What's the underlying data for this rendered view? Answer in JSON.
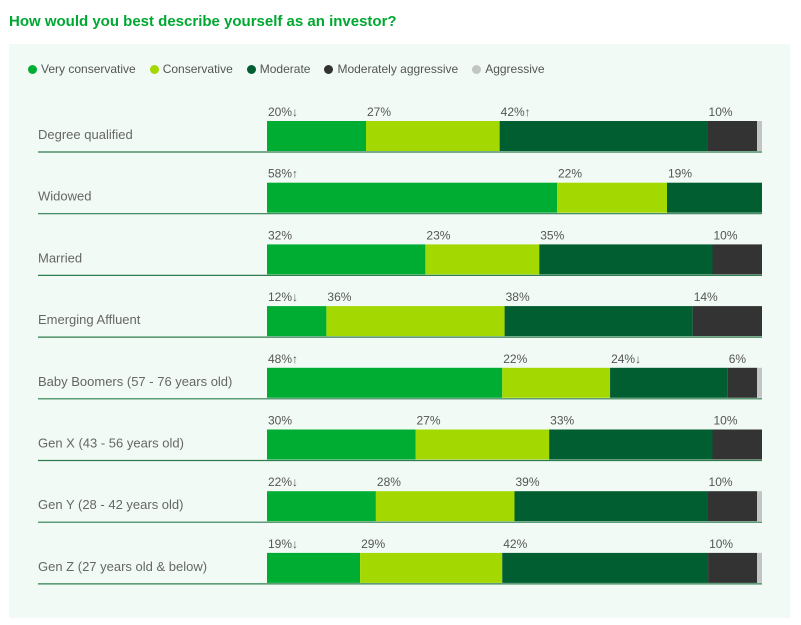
{
  "title": "How would you best describe yourself as an investor?",
  "chart_data": {
    "type": "bar",
    "orientation": "horizontal",
    "stacked": true,
    "normalized_to_100": true,
    "title": "How would you best describe yourself as an investor?",
    "legend_position": "top-left",
    "grid": false,
    "categories": [
      "Degree qualified",
      "Widowed",
      "Married",
      "Emerging Affluent",
      "Baby Boomers (57 - 76 years old)",
      "Gen X (43 - 56 years old)",
      "Gen Y (28 - 42 years old)",
      "Gen Z (27 years old & below)"
    ],
    "series": [
      {
        "name": "Very conservative",
        "color": "#00ad33",
        "values": [
          20,
          58,
          32,
          12,
          48,
          30,
          22,
          19
        ],
        "trend": [
          "down",
          "up",
          "",
          "down",
          "up",
          "",
          "down",
          "down"
        ]
      },
      {
        "name": "Conservative",
        "color": "#a3d900",
        "values": [
          27,
          22,
          23,
          36,
          22,
          27,
          28,
          29
        ],
        "trend": [
          "",
          "",
          "",
          "",
          "",
          "",
          "",
          ""
        ]
      },
      {
        "name": "Moderate",
        "color": "#005e30",
        "values": [
          42,
          19,
          35,
          38,
          24,
          33,
          39,
          42
        ],
        "trend": [
          "up",
          "",
          "",
          "",
          "down",
          "",
          "",
          ""
        ]
      },
      {
        "name": "Moderately aggressive",
        "color": "#333333",
        "values": [
          10,
          0,
          10,
          14,
          6,
          10,
          10,
          10
        ],
        "trend": [
          "",
          "",
          "",
          "",
          "",
          "",
          "",
          ""
        ]
      },
      {
        "name": "Aggressive",
        "color": "#c4c4c4",
        "values": [
          1,
          0,
          0,
          0,
          1,
          0,
          1,
          1
        ],
        "trend": [
          "",
          "",
          "",
          "",
          "",
          "",
          "",
          ""
        ],
        "labels_shown": false
      }
    ]
  }
}
